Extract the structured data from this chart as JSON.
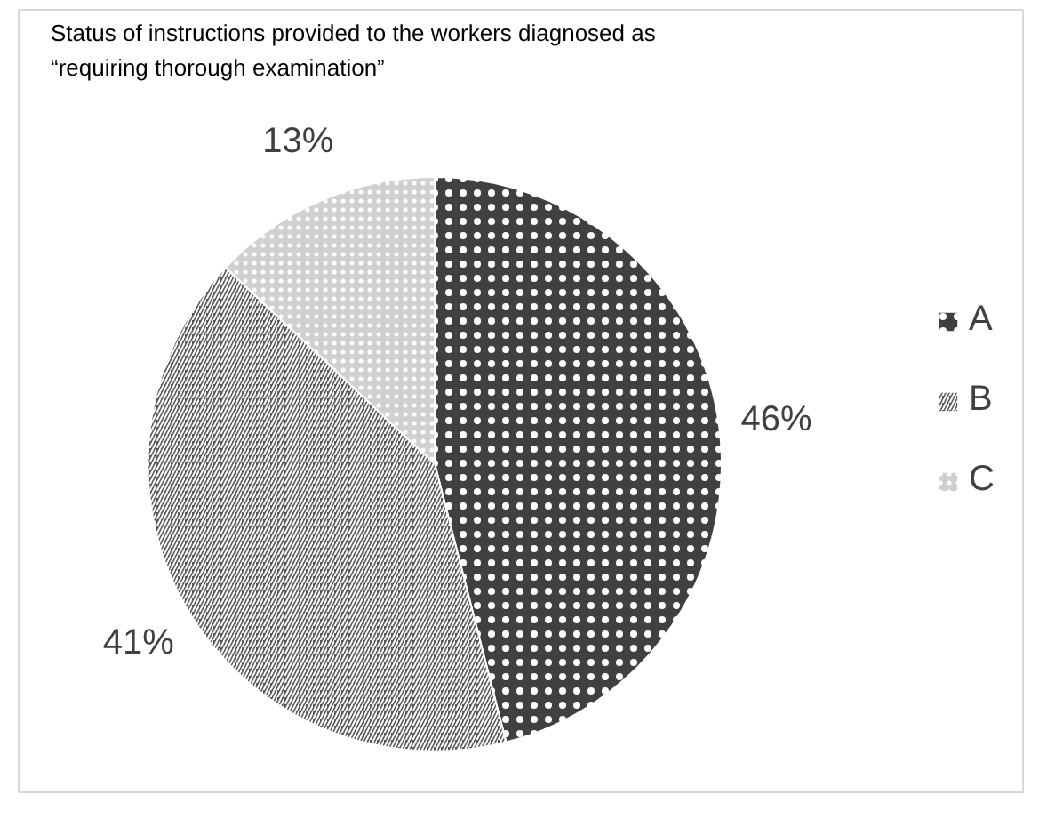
{
  "chart_data": {
    "type": "pie",
    "title": "Status of instructions provided to the workers diagnosed as “requiring thorough examination”",
    "categories": [
      "A",
      "B",
      "C"
    ],
    "values": [
      46,
      41,
      13
    ],
    "colors": [
      "#404040",
      "#595959",
      "#d0d0d0"
    ],
    "value_labels": [
      "46%",
      "41%",
      "13%"
    ],
    "legend": "right"
  }
}
